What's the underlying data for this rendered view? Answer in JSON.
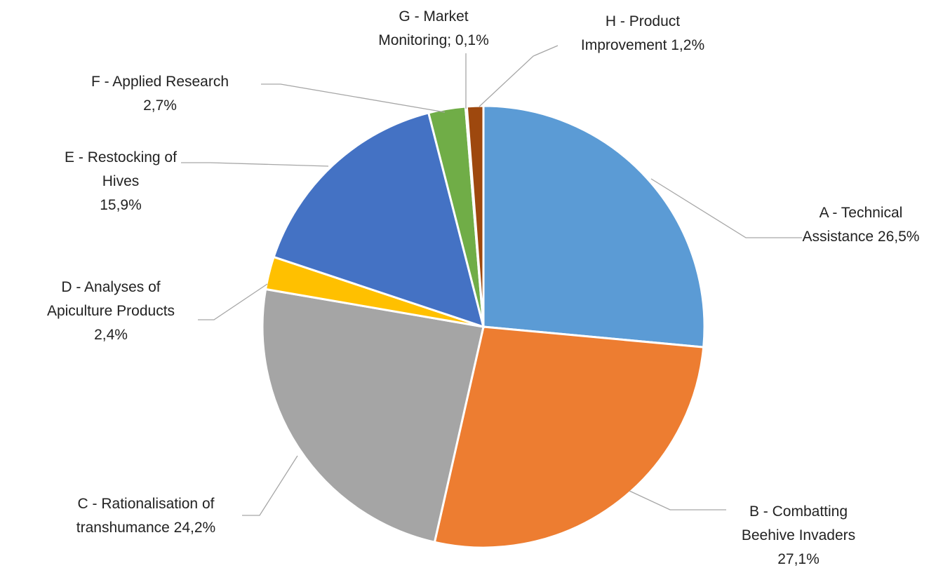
{
  "chart_data": {
    "type": "pie",
    "start_angle_deg": 0,
    "direction": "clockwise",
    "series": [
      {
        "key": "A",
        "label_lines": [
          "A - Technical",
          "Assistance 26,5%"
        ],
        "value": 26.5,
        "color": "#5b9bd5"
      },
      {
        "key": "B",
        "label_lines": [
          "B - Combatting",
          "Beehive Invaders",
          "27,1%"
        ],
        "value": 27.1,
        "color": "#ed7d31"
      },
      {
        "key": "C",
        "label_lines": [
          "C - Rationalisation of",
          "transhumance 24,2%"
        ],
        "value": 24.2,
        "color": "#a5a5a5"
      },
      {
        "key": "D",
        "label_lines": [
          "D - Analyses of",
          "Apiculture Products",
          "2,4%"
        ],
        "value": 2.4,
        "color": "#ffc000"
      },
      {
        "key": "E",
        "label_lines": [
          "E - Restocking of",
          "Hives",
          "15,9%"
        ],
        "value": 15.9,
        "color": "#4472c4"
      },
      {
        "key": "F",
        "label_lines": [
          "F - Applied Research",
          "2,7%"
        ],
        "value": 2.7,
        "color": "#70ad47"
      },
      {
        "key": "G",
        "label_lines": [
          "G - Market",
          "Monitoring; 0,1%"
        ],
        "value": 0.1,
        "color": "#255e91"
      },
      {
        "key": "H",
        "label_lines": [
          "H - Product",
          "Improvement 1,2%"
        ],
        "value": 1.2,
        "color": "#9e480e"
      }
    ]
  }
}
